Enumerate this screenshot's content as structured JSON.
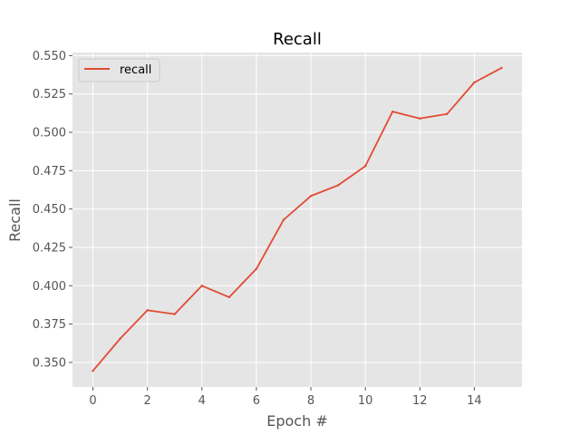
{
  "chart_data": {
    "type": "line",
    "title": "Recall",
    "xlabel": "Epoch #",
    "ylabel": "Recall",
    "xlim": [
      -0.75,
      15.75
    ],
    "ylim": [
      0.334,
      0.552
    ],
    "xticks": [
      0,
      2,
      4,
      6,
      8,
      10,
      12,
      14
    ],
    "xtick_labels": [
      "0",
      "2",
      "4",
      "6",
      "8",
      "10",
      "12",
      "14"
    ],
    "yticks": [
      0.35,
      0.375,
      0.4,
      0.425,
      0.45,
      0.475,
      0.5,
      0.525,
      0.55
    ],
    "ytick_labels": [
      "0.350",
      "0.375",
      "0.400",
      "0.425",
      "0.450",
      "0.475",
      "0.500",
      "0.525",
      "0.550"
    ],
    "grid": true,
    "legend_position": "top-left",
    "background": "#e5e5e5",
    "series": [
      {
        "name": "recall",
        "color": "#e24a33",
        "x": [
          0,
          1,
          2,
          3,
          4,
          5,
          6,
          7,
          8,
          9,
          10,
          11,
          12,
          13,
          14,
          15
        ],
        "y": [
          0.3445,
          0.3655,
          0.384,
          0.3815,
          0.4,
          0.3925,
          0.411,
          0.443,
          0.4585,
          0.4655,
          0.478,
          0.5135,
          0.509,
          0.512,
          0.5325,
          0.542
        ]
      }
    ]
  }
}
